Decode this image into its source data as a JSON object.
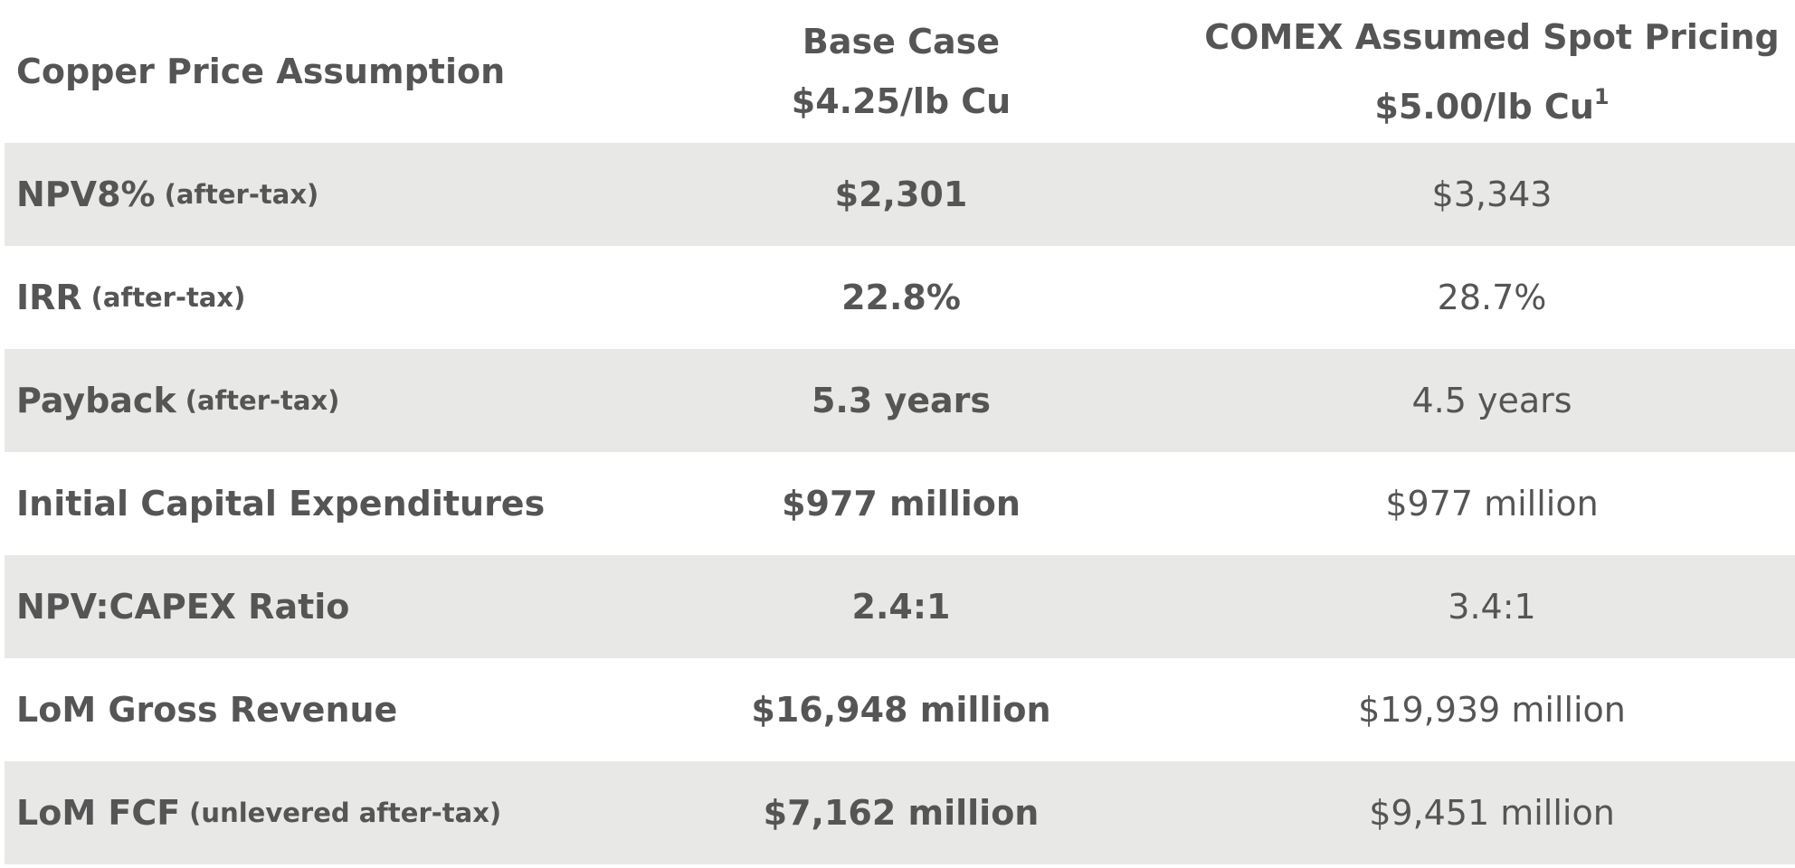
{
  "table": {
    "header": {
      "label": "Copper Price Assumption",
      "base": [
        "Base Case",
        "$4.25/lb Cu"
      ],
      "comex": [
        "COMEX Assumed Spot Pricing",
        "$5.00/lb Cu"
      ],
      "comex_note": "1"
    },
    "rows": [
      {
        "label": "NPV8%",
        "qualifier": "(after-tax)",
        "base": "$2,301",
        "comex": "$3,343"
      },
      {
        "label": "IRR",
        "qualifier": "(after-tax)",
        "base": "22.8%",
        "comex": "28.7%"
      },
      {
        "label": "Payback",
        "qualifier": "(after-tax)",
        "base": "5.3 years",
        "comex": "4.5 years"
      },
      {
        "label": "Initial Capital Expenditures",
        "base": "$977 million",
        "comex": "$977 million"
      },
      {
        "label": "NPV:CAPEX Ratio",
        "base": "2.4:1",
        "comex": "3.4:1"
      },
      {
        "label": "LoM Gross Revenue",
        "base": "$16,948 million",
        "comex": "$19,939 million"
      },
      {
        "label": "LoM FCF",
        "qualifier": "(unlevered after-tax)",
        "base": "$7,162 million",
        "comex": "$9,451 million"
      }
    ]
  }
}
